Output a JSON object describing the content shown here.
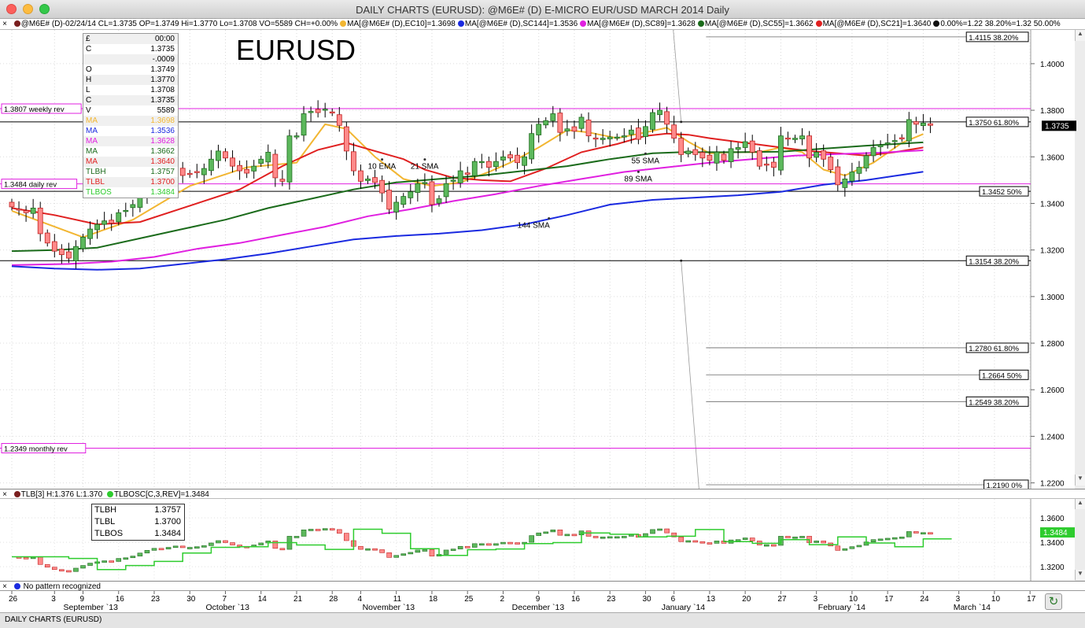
{
  "window": {
    "title": "DAILY CHARTS (EURUSD): @M6E# (D) E-MICRO EUR/USD MARCH 2014 Daily",
    "status": "DAILY CHARTS (EURUSD)"
  },
  "price_legend": {
    "close_icon": "×",
    "items": [
      {
        "color": "#7a1f1f",
        "text": "@M6E# (D)-02/24/14 CL=1.3735 OP=1.3749 Hi=1.3770 Lo=1.3708 VO=5589 CH=+0.00%"
      },
      {
        "color": "#f2b632",
        "text": "MA[@M6E# (D),EC10]=1.3698"
      },
      {
        "color": "#1a2ae0",
        "text": "MA[@M6E# (D),SC144]=1.3536"
      },
      {
        "color": "#e020e0",
        "text": "MA[@M6E# (D),SC89]=1.3628"
      },
      {
        "color": "#1b6b1b",
        "text": "MA[@M6E# (D),SC55]=1.3662"
      },
      {
        "color": "#e02020",
        "text": "MA[@M6E# (D),SC21]=1.3640"
      },
      {
        "color": "#111111",
        "text": "0.00%=1.22 38.20%=1.32 50.00%"
      }
    ]
  },
  "infobox": {
    "rows": [
      {
        "k": "£",
        "v": "00:00",
        "color": "#000000"
      },
      {
        "k": "C",
        "v": "1.3735",
        "color": "#000000"
      },
      {
        "k": "",
        "v": "-.0009",
        "color": "#000000"
      },
      {
        "k": "O",
        "v": "1.3749",
        "color": "#000000"
      },
      {
        "k": "H",
        "v": "1.3770",
        "color": "#000000"
      },
      {
        "k": "L",
        "v": "1.3708",
        "color": "#000000"
      },
      {
        "k": "C",
        "v": "1.3735",
        "color": "#000000"
      },
      {
        "k": "V",
        "v": "5589",
        "color": "#000000"
      },
      {
        "k": "MA",
        "v": "1.3698",
        "color": "#f2b632"
      },
      {
        "k": "MA",
        "v": "1.3536",
        "color": "#1a2ae0"
      },
      {
        "k": "MA",
        "v": "1.3628",
        "color": "#e020e0"
      },
      {
        "k": "MA",
        "v": "1.3662",
        "color": "#1b6b1b"
      },
      {
        "k": "MA",
        "v": "1.3640",
        "color": "#e02020"
      },
      {
        "k": "TLBH",
        "v": "1.3757",
        "color": "#1b6b1b"
      },
      {
        "k": "TLBL",
        "v": "1.3700",
        "color": "#e02020"
      },
      {
        "k": "TLBOS",
        "v": "1.3484",
        "color": "#2ecc2e"
      }
    ]
  },
  "sub_legend": {
    "text1": "TLB[3] H:1.376 L:1.370",
    "text2": "TLBOSC[C,3,REV]=1.3484",
    "dot1": "#7a1f1f",
    "dot2": "#2ecc2e"
  },
  "subbox": {
    "rows": [
      {
        "k": "TLBH",
        "v": "1.3757"
      },
      {
        "k": "TLBL",
        "v": "1.3700"
      },
      {
        "k": "TLBOS",
        "v": "1.3484"
      }
    ]
  },
  "pattern_bar": {
    "text": "No pattern recognized",
    "icon": "blue-circle-icon"
  },
  "chart_data": {
    "type": "candlestick",
    "title": "EURUSD",
    "price_ylim": [
      1.2175,
      1.4145
    ],
    "price_ticks": [
      "1.4000",
      "1.3800",
      "1.3600",
      "1.3400",
      "1.3200",
      "1.3000",
      "1.2800",
      "1.2600",
      "1.2400",
      "1.2200"
    ],
    "last_price": "1.3735",
    "x_labels": [
      {
        "d": "26",
        "i": 0
      },
      {
        "d": "3",
        "i": 6
      },
      {
        "d": "9",
        "i": 10
      },
      {
        "d": "16",
        "i": 15
      },
      {
        "d": "23",
        "i": 20
      },
      {
        "d": "30",
        "i": 25
      },
      {
        "d": "7",
        "i": 30
      },
      {
        "d": "14",
        "i": 35
      },
      {
        "d": "21",
        "i": 40
      },
      {
        "d": "28",
        "i": 45
      },
      {
        "d": "4",
        "i": 49
      },
      {
        "d": "11",
        "i": 54
      },
      {
        "d": "18",
        "i": 59
      },
      {
        "d": "25",
        "i": 64
      },
      {
        "d": "2",
        "i": 69
      },
      {
        "d": "9",
        "i": 74
      },
      {
        "d": "16",
        "i": 79
      },
      {
        "d": "23",
        "i": 84
      },
      {
        "d": "30",
        "i": 89
      },
      {
        "d": "6",
        "i": 93
      },
      {
        "d": "13",
        "i": 98
      },
      {
        "d": "20",
        "i": 103
      },
      {
        "d": "27",
        "i": 108
      },
      {
        "d": "3",
        "i": 113
      },
      {
        "d": "10",
        "i": 118
      },
      {
        "d": "17",
        "i": 123
      },
      {
        "d": "24",
        "i": 128
      },
      {
        "d": "3",
        "i": 133
      },
      {
        "d": "10",
        "i": 138
      },
      {
        "d": "17",
        "i": 143
      }
    ],
    "month_labels": [
      {
        "t": "September `13",
        "i": 10
      },
      {
        "t": "October `13",
        "i": 30
      },
      {
        "t": "November `13",
        "i": 52
      },
      {
        "t": "December `13",
        "i": 73
      },
      {
        "t": "January `14",
        "i": 94
      },
      {
        "t": "February `14",
        "i": 116
      },
      {
        "t": "March `14",
        "i": 135
      }
    ],
    "closes": [
      1.3385,
      1.3375,
      1.336,
      1.338,
      1.327,
      1.323,
      1.3195,
      1.318,
      1.3165,
      1.3215,
      1.3255,
      1.329,
      1.331,
      1.3325,
      1.3315,
      1.336,
      1.337,
      1.3395,
      1.344,
      1.348,
      1.351,
      1.35,
      1.3525,
      1.3545,
      1.352,
      1.3525,
      1.3535,
      1.355,
      1.359,
      1.3625,
      1.3595,
      1.356,
      1.354,
      1.353,
      1.356,
      1.359,
      1.362,
      1.351,
      1.3495,
      1.369,
      1.369,
      1.3785,
      1.3795,
      1.379,
      1.3805,
      1.379,
      1.3735,
      1.3625,
      1.354,
      1.3495,
      1.3505,
      1.349,
      1.3445,
      1.3375,
      1.3405,
      1.343,
      1.345,
      1.3485,
      1.349,
      1.3395,
      1.342,
      1.3485,
      1.35,
      1.354,
      1.3525,
      1.358,
      1.358,
      1.3555,
      1.358,
      1.36,
      1.3595,
      1.3575,
      1.36,
      1.37,
      1.374,
      1.3755,
      1.3785,
      1.3705,
      1.372,
      1.371,
      1.377,
      1.369,
      1.368,
      1.368,
      1.3685,
      1.3685,
      1.369,
      1.3715,
      1.3675,
      1.373,
      1.379,
      1.38,
      1.374,
      1.368,
      1.361,
      1.3625,
      1.361,
      1.3595,
      1.3585,
      1.362,
      1.3585,
      1.3635,
      1.364,
      1.3665,
      1.362,
      1.356,
      1.3565,
      1.3555,
      1.369,
      1.368,
      1.368,
      1.369,
      1.3595,
      1.362,
      1.359,
      1.3545,
      1.348,
      1.3505,
      1.3535,
      1.3555,
      1.3605,
      1.364,
      1.365,
      1.366,
      1.367,
      1.368,
      1.376,
      1.374,
      1.3745,
      1.3735
    ],
    "series": [
      {
        "name": "10 EMA",
        "color": "#f2b632",
        "points": [
          [
            0,
            1.3368
          ],
          [
            10,
            1.3255
          ],
          [
            17,
            1.333
          ],
          [
            25,
            1.3475
          ],
          [
            33,
            1.3555
          ],
          [
            40,
            1.3575
          ],
          [
            44,
            1.374
          ],
          [
            47,
            1.372
          ],
          [
            51,
            1.36
          ],
          [
            55,
            1.3505
          ],
          [
            59,
            1.3475
          ],
          [
            63,
            1.349
          ],
          [
            67,
            1.3535
          ],
          [
            70,
            1.3575
          ],
          [
            74,
            1.364
          ],
          [
            78,
            1.3715
          ],
          [
            81,
            1.3705
          ],
          [
            85,
            1.368
          ],
          [
            89,
            1.3705
          ],
          [
            92,
            1.3725
          ],
          [
            95,
            1.3665
          ],
          [
            98,
            1.3615
          ],
          [
            101,
            1.362
          ],
          [
            105,
            1.362
          ],
          [
            108,
            1.364
          ],
          [
            111,
            1.362
          ],
          [
            114,
            1.3545
          ],
          [
            117,
            1.352
          ],
          [
            121,
            1.3575
          ],
          [
            125,
            1.366
          ],
          [
            128,
            1.3698
          ]
        ]
      },
      {
        "name": "21 SMA",
        "color": "#e02020",
        "points": [
          [
            0,
            1.338
          ],
          [
            6,
            1.335
          ],
          [
            12,
            1.331
          ],
          [
            18,
            1.332
          ],
          [
            25,
            1.339
          ],
          [
            32,
            1.346
          ],
          [
            38,
            1.356
          ],
          [
            43,
            1.363
          ],
          [
            47,
            1.366
          ],
          [
            51,
            1.3625
          ],
          [
            55,
            1.359
          ],
          [
            58,
            1.3545
          ],
          [
            62,
            1.351
          ],
          [
            66,
            1.35
          ],
          [
            70,
            1.3495
          ],
          [
            75,
            1.355
          ],
          [
            80,
            1.362
          ],
          [
            85,
            1.3655
          ],
          [
            89,
            1.369
          ],
          [
            92,
            1.37
          ],
          [
            95,
            1.3695
          ],
          [
            98,
            1.368
          ],
          [
            103,
            1.366
          ],
          [
            108,
            1.364
          ],
          [
            112,
            1.3625
          ],
          [
            116,
            1.3615
          ],
          [
            120,
            1.3605
          ],
          [
            124,
            1.362
          ],
          [
            128,
            1.364
          ]
        ]
      },
      {
        "name": "55 SMA",
        "color": "#1b6b1b",
        "points": [
          [
            0,
            1.3195
          ],
          [
            6,
            1.32
          ],
          [
            12,
            1.321
          ],
          [
            18,
            1.325
          ],
          [
            24,
            1.329
          ],
          [
            30,
            1.333
          ],
          [
            36,
            1.338
          ],
          [
            42,
            1.342
          ],
          [
            48,
            1.346
          ],
          [
            54,
            1.349
          ],
          [
            60,
            1.3505
          ],
          [
            66,
            1.352
          ],
          [
            72,
            1.354
          ],
          [
            78,
            1.356
          ],
          [
            84,
            1.359
          ],
          [
            90,
            1.3615
          ],
          [
            94,
            1.362
          ],
          [
            98,
            1.362
          ],
          [
            102,
            1.362
          ],
          [
            108,
            1.3622
          ],
          [
            114,
            1.3635
          ],
          [
            120,
            1.3648
          ],
          [
            128,
            1.3662
          ]
        ]
      },
      {
        "name": "89 SMA",
        "color": "#e020e0",
        "points": [
          [
            0,
            1.3135
          ],
          [
            8,
            1.314
          ],
          [
            14,
            1.315
          ],
          [
            20,
            1.317
          ],
          [
            26,
            1.3205
          ],
          [
            32,
            1.323
          ],
          [
            38,
            1.3265
          ],
          [
            44,
            1.33
          ],
          [
            50,
            1.3345
          ],
          [
            56,
            1.3375
          ],
          [
            62,
            1.341
          ],
          [
            68,
            1.344
          ],
          [
            74,
            1.3475
          ],
          [
            80,
            1.3505
          ],
          [
            86,
            1.3535
          ],
          [
            92,
            1.3555
          ],
          [
            98,
            1.3575
          ],
          [
            104,
            1.359
          ],
          [
            110,
            1.3605
          ],
          [
            116,
            1.3612
          ],
          [
            122,
            1.3618
          ],
          [
            128,
            1.3628
          ]
        ]
      },
      {
        "name": "144 SMA",
        "color": "#1a2ae0",
        "points": [
          [
            0,
            1.313
          ],
          [
            6,
            1.312
          ],
          [
            12,
            1.3115
          ],
          [
            18,
            1.312
          ],
          [
            24,
            1.314
          ],
          [
            30,
            1.316
          ],
          [
            36,
            1.3185
          ],
          [
            42,
            1.3215
          ],
          [
            48,
            1.3245
          ],
          [
            54,
            1.326
          ],
          [
            60,
            1.327
          ],
          [
            66,
            1.3285
          ],
          [
            72,
            1.331
          ],
          [
            78,
            1.335
          ],
          [
            84,
            1.3395
          ],
          [
            90,
            1.3415
          ],
          [
            96,
            1.3425
          ],
          [
            102,
            1.3435
          ],
          [
            108,
            1.345
          ],
          [
            114,
            1.348
          ],
          [
            120,
            1.35
          ],
          [
            128,
            1.3536
          ]
        ]
      }
    ],
    "ma_labels": [
      {
        "text": "10 EMA",
        "i": 52,
        "y": 1.3575
      },
      {
        "text": "21 SMA",
        "i": 58,
        "y": 1.3575
      },
      {
        "text": "55 SMA",
        "i": 89,
        "y": 1.36
      },
      {
        "text": "89 SMA",
        "i": 88,
        "y": 1.3522
      },
      {
        "text": "144 SMA",
        "i": 73,
        "y": 1.3322
      }
    ],
    "hlines": [
      {
        "label": "1.3807 weekly rev",
        "value": 1.3807,
        "color": "#e020e0",
        "side": "left"
      },
      {
        "label": "1.3484 daily rev",
        "value": 1.3484,
        "color": "#e020e0",
        "side": "left"
      },
      {
        "label": "1.2349 monthly rev",
        "value": 1.2349,
        "color": "#e020e0",
        "side": "left"
      },
      {
        "label": "1.3750 61.80%",
        "value": 1.375,
        "color": "#000000",
        "side": "right"
      },
      {
        "label": "1.3452 50%",
        "value": 1.3452,
        "color": "#000000",
        "side": "right"
      },
      {
        "label": "1.3154 38.20%",
        "value": 1.3154,
        "color": "#000000",
        "side": "right"
      }
    ],
    "fib_levels": [
      {
        "label": "1.4115 38.20%",
        "value": 1.4115
      },
      {
        "label": "1.2780 61.80%",
        "value": 1.278
      },
      {
        "label": "1.2664 50%",
        "value": 1.2664
      },
      {
        "label": "1.2549 38.20%",
        "value": 1.2549
      },
      {
        "label": "1.2190 0%",
        "value": 1.219
      }
    ],
    "osc_ylim": [
      1.3085,
      1.3755
    ],
    "osc_ticks": [
      "1.3600",
      "1.3400",
      "1.3200"
    ],
    "osc_last": "1.3484"
  }
}
